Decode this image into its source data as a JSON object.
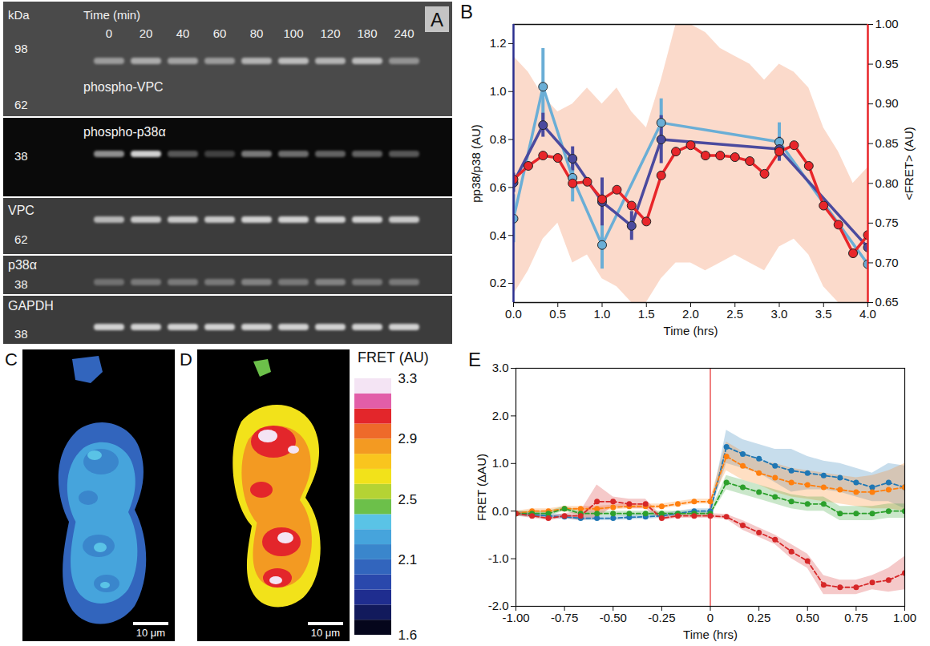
{
  "chart_data": [
    {
      "type": "line",
      "title": "B",
      "x_label": "Time (hrs)",
      "y_label": "pp38/p38 (AU)",
      "y2_label": "<FRET> (AU)",
      "xlim": [
        0,
        4
      ],
      "xticks": [
        {
          "value": 0,
          "label": "0.0"
        },
        0.5,
        {
          "value": 1,
          "label": "1.0"
        },
        1.5,
        {
          "value": 2,
          "label": "2.0"
        },
        2.5,
        {
          "value": 3,
          "label": "3.0"
        },
        3.5,
        {
          "value": 4,
          "label": "4.0"
        }
      ],
      "ylim": [
        0.12,
        1.28
      ],
      "yticks": [
        0.2,
        0.4,
        0.6,
        0.8,
        {
          "value": 1,
          "label": "1.0"
        },
        1.2
      ],
      "y2lim": [
        0.65,
        1
      ],
      "y2ticks": [
        0.65,
        {
          "value": 0.7,
          "label": "0.70"
        },
        0.75,
        {
          "value": 0.8,
          "label": "0.80"
        },
        0.85,
        {
          "value": 0.9,
          "label": "0.90"
        },
        0.95,
        {
          "value": 1,
          "label": "1.00"
        }
      ],
      "series": [
        {
          "color": "#6aaed6",
          "marker": "circle",
          "x": [
            0,
            0.333,
            0.667,
            1,
            1.667,
            3,
            4
          ],
          "values": [
            0.47,
            1.02,
            0.64,
            0.36,
            0.87,
            0.79,
            0.28
          ],
          "errors": [
            0.1,
            0.16,
            0.1,
            0.1,
            0.1,
            0.08,
            null
          ]
        },
        {
          "color": "#4b4a9e",
          "marker": "circle",
          "x": [
            0,
            0.333,
            0.667,
            1,
            1.333,
            1.667,
            3,
            4
          ],
          "values": [
            0.62,
            0.86,
            0.72,
            0.54,
            0.44,
            0.8,
            0.76,
            0.35
          ],
          "errors": [
            0.04,
            0.05,
            0.05,
            0.1,
            0.06,
            0.1,
            0.05,
            null
          ]
        },
        {
          "color": "#e8262a",
          "marker": "circle",
          "axis": "y2",
          "x": [
            0,
            0.167,
            0.333,
            0.5,
            0.667,
            0.833,
            1,
            1.167,
            1.333,
            1.5,
            1.667,
            1.833,
            2,
            2.167,
            2.333,
            2.5,
            2.667,
            2.833,
            3,
            3.167,
            3.333,
            3.5,
            3.667,
            3.833,
            4
          ],
          "values": [
            0.805,
            0.822,
            0.835,
            0.832,
            0.8,
            0.802,
            0.78,
            0.792,
            0.772,
            0.752,
            0.81,
            0.84,
            0.848,
            0.835,
            0.835,
            0.833,
            0.828,
            0.812,
            0.84,
            0.848,
            0.822,
            0.772,
            0.748,
            0.712,
            0.735
          ],
          "lower": [
            0.66,
            0.69,
            0.73,
            0.75,
            0.7,
            0.71,
            0.68,
            0.67,
            0.65,
            0.65,
            0.68,
            0.7,
            0.7,
            0.69,
            0.7,
            0.71,
            0.7,
            0.69,
            0.72,
            0.73,
            0.71,
            0.67,
            0.65,
            0.65,
            0.65
          ],
          "upper": [
            0.96,
            0.94,
            0.91,
            0.89,
            0.9,
            0.92,
            0.9,
            0.92,
            0.89,
            0.87,
            0.93,
            1,
            1,
            0.99,
            0.97,
            0.96,
            0.95,
            0.93,
            0.95,
            0.94,
            0.92,
            0.87,
            0.84,
            0.8,
            0.82
          ]
        }
      ]
    },
    {
      "type": "line",
      "title": "E",
      "x_label": "Time (hrs)",
      "y_label": "FRET (ΔAU)",
      "xlim": [
        -1,
        1
      ],
      "xticks": [
        {
          "value": -1,
          "label": "-1.00"
        },
        -0.75,
        {
          "value": -0.5,
          "label": "-0.50"
        },
        -0.25,
        {
          "value": 0,
          "label": "0"
        },
        0.25,
        {
          "value": 0.5,
          "label": "0.50"
        },
        0.75,
        {
          "value": 1,
          "label": "1.00"
        }
      ],
      "ylim": [
        -2,
        3
      ],
      "yticks": [
        {
          "value": -2,
          "label": "-2.0"
        },
        {
          "value": -1,
          "label": "-1.0"
        },
        {
          "value": 0,
          "label": "0.0"
        },
        {
          "value": 1,
          "label": "1.0"
        },
        {
          "value": 2,
          "label": "2.0"
        },
        {
          "value": 3,
          "label": "3.0"
        }
      ],
      "vline": 0,
      "x": [
        -1,
        -0.917,
        -0.833,
        -0.75,
        -0.667,
        -0.583,
        -0.5,
        -0.417,
        -0.333,
        -0.25,
        -0.167,
        -0.083,
        0,
        0.083,
        0.167,
        0.25,
        0.333,
        0.417,
        0.5,
        0.583,
        0.667,
        0.75,
        0.833,
        0.917,
        1
      ],
      "series": [
        {
          "color": "#1f77b4",
          "marker": "circle",
          "values": [
            -0.05,
            -0.08,
            -0.1,
            -0.12,
            -0.15,
            -0.15,
            -0.15,
            -0.13,
            -0.12,
            -0.1,
            -0.05,
            0,
            0,
            1.35,
            1.2,
            1.1,
            0.95,
            0.85,
            0.8,
            0.75,
            0.7,
            0.6,
            0.5,
            0.6,
            0.5
          ],
          "errors": [
            0.05,
            0.05,
            0.05,
            0.05,
            0.05,
            0.05,
            0.05,
            0.05,
            0.05,
            0.05,
            0.05,
            0.05,
            0.05,
            0.35,
            0.3,
            0.3,
            0.35,
            0.45,
            0.35,
            0.3,
            0.3,
            0.3,
            0.3,
            0.4,
            0.45
          ]
        },
        {
          "color": "#ff7f0e",
          "marker": "circle",
          "values": [
            -0.05,
            0,
            0,
            0.05,
            0.05,
            0.05,
            0.08,
            0.1,
            0.1,
            0.1,
            0.15,
            0.2,
            0.2,
            1.15,
            0.95,
            0.8,
            0.7,
            0.6,
            0.55,
            0.5,
            0.45,
            0.4,
            0.4,
            0.45,
            0.5
          ],
          "errors": [
            0.05,
            0.05,
            0.05,
            0.05,
            0.05,
            0.05,
            0.05,
            0.05,
            0.05,
            0.05,
            0.05,
            0.05,
            0.05,
            0.3,
            0.3,
            0.25,
            0.3,
            0.3,
            0.3,
            0.3,
            0.3,
            0.3,
            0.35,
            0.4,
            0.5
          ]
        },
        {
          "color": "#2ca02c",
          "marker": "circle",
          "values": [
            -0.05,
            -0.05,
            -0.05,
            0.05,
            -0.05,
            -0.05,
            -0.05,
            -0.05,
            -0.05,
            -0.05,
            -0.05,
            -0.05,
            -0.05,
            0.6,
            0.5,
            0.4,
            0.3,
            0.2,
            0.15,
            0.15,
            -0.05,
            -0.05,
            -0.05,
            0,
            0
          ],
          "errors": [
            0.05,
            0.05,
            0.05,
            0.05,
            0.05,
            0.05,
            0.05,
            0.05,
            0.05,
            0.05,
            0.05,
            0.05,
            0.05,
            0.15,
            0.15,
            0.15,
            0.15,
            0.15,
            0.15,
            0.15,
            0.15,
            0.15,
            0.15,
            0.15,
            0.15
          ]
        },
        {
          "color": "#d62728",
          "marker": "circle",
          "values": [
            -0.05,
            -0.1,
            -0.15,
            -0.1,
            -0.1,
            0.2,
            0.2,
            0.15,
            0.15,
            -0.15,
            -0.1,
            -0.1,
            -0.1,
            -0.12,
            -0.3,
            -0.45,
            -0.6,
            -0.85,
            -1.05,
            -1.55,
            -1.6,
            -1.6,
            -1.5,
            -1.45,
            -1.3
          ],
          "errors": [
            0.05,
            0.05,
            0.05,
            0.05,
            0.1,
            0.35,
            0.1,
            0.1,
            0.1,
            0.05,
            0.05,
            0.05,
            0.05,
            0.05,
            0.1,
            0.1,
            0.1,
            0.15,
            0.15,
            0.2,
            0.15,
            0.15,
            0.15,
            0.25,
            0.35
          ]
        }
      ]
    }
  ],
  "blot": {
    "title": "A",
    "unit_label": "kDa",
    "time_label": "Time (min)",
    "lanes": [
      0,
      20,
      40,
      60,
      80,
      100,
      120,
      180,
      240
    ],
    "rows": [
      {
        "label": "phospho-VPC",
        "markers": [
          98,
          62
        ],
        "band_intensity": [
          0.5,
          0.6,
          0.55,
          0.5,
          0.65,
          0.7,
          0.65,
          0.7,
          0.45
        ]
      },
      {
        "label": "phospho-p38α",
        "markers": [
          38
        ],
        "band_intensity": [
          0.6,
          0.9,
          0.35,
          0.25,
          0.5,
          0.45,
          0.4,
          0.4,
          0.35
        ]
      },
      {
        "label": "VPC",
        "markers": [
          62
        ],
        "band_intensity": [
          0.7,
          0.8,
          0.8,
          0.8,
          0.85,
          0.85,
          0.85,
          0.85,
          0.8
        ]
      },
      {
        "label": "p38α",
        "markers": [
          38
        ],
        "band_intensity": [
          0.3,
          0.35,
          0.35,
          0.35,
          0.4,
          0.35,
          0.4,
          0.35,
          0.35
        ]
      },
      {
        "label": "GAPDH",
        "markers": [
          38
        ],
        "band_intensity": [
          0.85,
          0.85,
          0.85,
          0.85,
          0.85,
          0.85,
          0.85,
          0.85,
          0.85
        ]
      }
    ]
  },
  "fret_images": {
    "colorbar": {
      "title": "FRET (AU)",
      "range": [
        1.6,
        3.3
      ],
      "ticks": [
        3.3,
        2.9,
        2.5,
        2.1,
        1.6
      ],
      "colors": [
        "#05061c",
        "#121a5c",
        "#1f2d8f",
        "#2a48ac",
        "#3265bd",
        "#3a86cc",
        "#46a4dc",
        "#5ac3e6",
        "#6cc04a",
        "#b5d334",
        "#f2e21a",
        "#f9c51e",
        "#f39a22",
        "#ee6a2a",
        "#e3262b",
        "#e25ea8",
        "#f4e4f4"
      ]
    },
    "panels": [
      {
        "title": "C",
        "scale_bar": "10 μm",
        "fret_levels": [
          2.05,
          2.25,
          2.15,
          2.35
        ],
        "fragment_fret": 2.05
      },
      {
        "title": "D",
        "scale_bar": "10 μm",
        "fret_levels": [
          2.65,
          2.85,
          3.05,
          3.25
        ],
        "fragment_fret": 2.45
      }
    ]
  }
}
